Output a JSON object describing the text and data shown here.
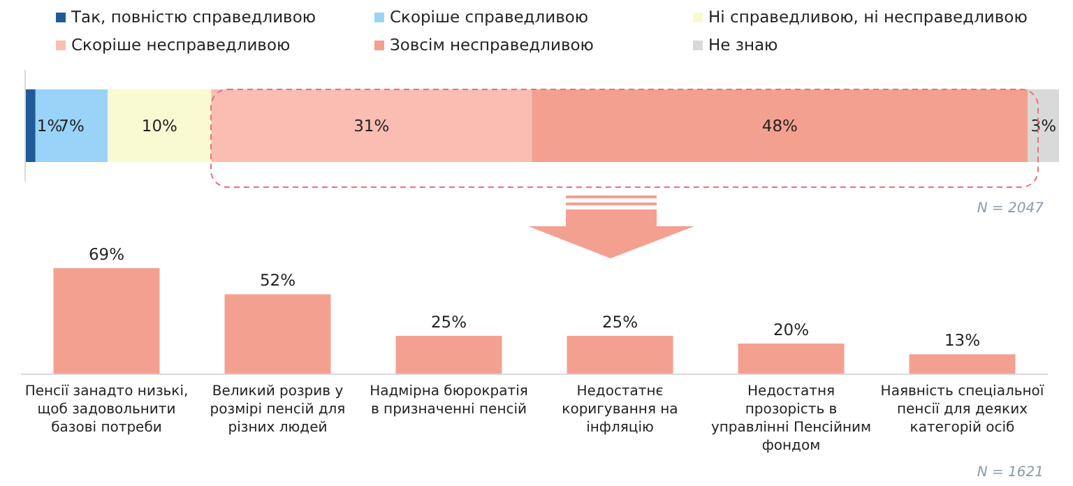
{
  "chart_data": [
    {
      "type": "bar",
      "orientation": "horizontal",
      "stacked": true,
      "categories": [
        null
      ],
      "legend": "top",
      "annotations": [
        "N = 2047"
      ],
      "series": [
        {
          "name": "Так, повністю справедливою",
          "color": "#1f5b99",
          "values": [
            1
          ],
          "value_labels": [
            "1%"
          ]
        },
        {
          "name": "Скоріше справедливою",
          "color": "#99d3f7",
          "values": [
            7
          ],
          "value_labels": [
            "7%"
          ]
        },
        {
          "name": "Ні справедливою, ні несправедливою",
          "color": "#fafad2",
          "values": [
            10
          ],
          "value_labels": [
            "10%"
          ]
        },
        {
          "name": "Скоріше несправедливою",
          "color": "#f9bdb2",
          "values": [
            31
          ],
          "value_labels": [
            "31%"
          ]
        },
        {
          "name": "Зовсім несправедливою",
          "color": "#f4a090",
          "values": [
            48
          ],
          "value_labels": [
            "48%"
          ]
        },
        {
          "name": "Не знаю",
          "color": "#d9d9d9",
          "values": [
            3
          ],
          "value_labels": [
            "3%"
          ]
        }
      ]
    },
    {
      "type": "bar",
      "categories": [
        "Пенсії занадто низькі, щоб задовольнити базові потреби",
        "Великий розрив у розмірі пенсій для різних людей",
        "Надмірна бюрократія в призначенні пенсій",
        "Недостатнє коригування на інфляцію",
        "Недостатня прозорість в управлінні Пенсійним фондом",
        "Наявність спеціальної пенсії для деяких категорій осіб"
      ],
      "values": [
        69,
        52,
        25,
        25,
        20,
        13
      ],
      "value_labels": [
        "69%",
        "52%",
        "25%",
        "25%",
        "20%",
        "13%"
      ],
      "color": "#f4a090",
      "annotations": [
        "N = 1621"
      ]
    }
  ]
}
